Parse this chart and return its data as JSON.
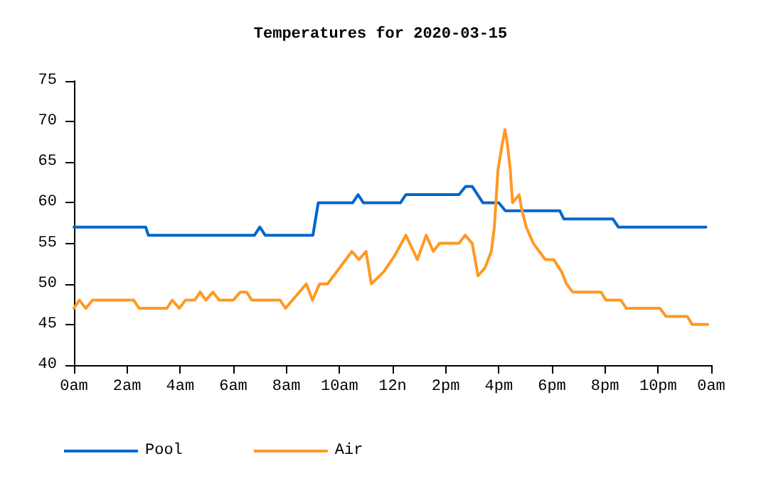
{
  "chart_data": {
    "type": "line",
    "title": "Temperatures for 2020-03-15",
    "xlim": [
      "2020-03-15T00:00",
      "2020-03-16T00:00"
    ],
    "xticks": [
      {
        "value": "2020-03-15T00:00",
        "label": "0am"
      },
      {
        "value": "2020-03-15T02:00",
        "label": "2am"
      },
      {
        "value": "2020-03-15T04:00",
        "label": "4am"
      },
      {
        "value": "2020-03-15T06:00",
        "label": "6am"
      },
      {
        "value": "2020-03-15T08:00",
        "label": "8am"
      },
      {
        "value": "2020-03-15T10:00",
        "label": "10am"
      },
      {
        "value": "2020-03-15T12:00",
        "label": "12n"
      },
      {
        "value": "2020-03-15T14:00",
        "label": "2pm"
      },
      {
        "value": "2020-03-15T16:00",
        "label": "4pm"
      },
      {
        "value": "2020-03-15T18:00",
        "label": "6pm"
      },
      {
        "value": "2020-03-15T20:00",
        "label": "8pm"
      },
      {
        "value": "2020-03-15T22:00",
        "label": "10pm"
      },
      {
        "value": "2020-03-16T00:00",
        "label": "0am"
      }
    ],
    "ylim": [
      40,
      75
    ],
    "yticks": [
      40,
      45,
      50,
      55,
      60,
      65,
      70,
      75
    ],
    "grid": false,
    "legend": "bottom left",
    "marker": "none",
    "line_style": "solid",
    "series": [
      {
        "name": "Pool",
        "color": "#0066cc",
        "x": [
          "2020-03-15T00:00",
          "2020-03-15T02:42",
          "2020-03-15T02:48",
          "2020-03-15T06:48",
          "2020-03-15T07:00",
          "2020-03-15T07:12",
          "2020-03-15T09:00",
          "2020-03-15T09:12",
          "2020-03-15T10:30",
          "2020-03-15T10:42",
          "2020-03-15T10:54",
          "2020-03-15T12:18",
          "2020-03-15T12:30",
          "2020-03-15T14:30",
          "2020-03-15T14:45",
          "2020-03-15T15:00",
          "2020-03-15T15:24",
          "2020-03-15T16:00",
          "2020-03-15T16:15",
          "2020-03-15T18:18",
          "2020-03-15T18:27",
          "2020-03-15T20:18",
          "2020-03-15T20:30",
          "2020-03-15T23:48"
        ],
        "values": [
          57,
          57,
          56,
          56,
          57,
          56,
          56,
          60,
          60,
          61,
          60,
          60,
          61,
          61,
          62,
          62,
          60,
          60,
          59,
          59,
          58,
          58,
          57,
          57
        ]
      },
      {
        "name": "Air",
        "color": "#ff9922",
        "x": [
          "2020-03-15T00:00",
          "2020-03-15T00:12",
          "2020-03-15T00:27",
          "2020-03-15T00:42",
          "2020-03-15T02:15",
          "2020-03-15T02:27",
          "2020-03-15T03:30",
          "2020-03-15T03:42",
          "2020-03-15T03:58",
          "2020-03-15T04:12",
          "2020-03-15T04:33",
          "2020-03-15T04:45",
          "2020-03-15T04:58",
          "2020-03-15T05:14",
          "2020-03-15T05:28",
          "2020-03-15T06:00",
          "2020-03-15T06:16",
          "2020-03-15T06:30",
          "2020-03-15T06:42",
          "2020-03-15T07:46",
          "2020-03-15T07:58",
          "2020-03-15T08:45",
          "2020-03-15T08:59",
          "2020-03-15T09:15",
          "2020-03-15T09:33",
          "2020-03-15T10:28",
          "2020-03-15T10:44",
          "2020-03-15T11:00",
          "2020-03-15T11:12",
          "2020-03-15T11:40",
          "2020-03-15T12:06",
          "2020-03-15T12:30",
          "2020-03-15T12:56",
          "2020-03-15T13:16",
          "2020-03-15T13:32",
          "2020-03-15T13:46",
          "2020-03-15T14:30",
          "2020-03-15T14:44",
          "2020-03-15T15:00",
          "2020-03-15T15:13",
          "2020-03-15T15:29",
          "2020-03-15T15:43",
          "2020-03-15T15:50",
          "2020-03-15T15:58",
          "2020-03-15T16:07",
          "2020-03-15T16:14",
          "2020-03-15T16:20",
          "2020-03-15T16:26",
          "2020-03-15T16:31",
          "2020-03-15T16:46",
          "2020-03-15T16:51",
          "2020-03-15T17:02",
          "2020-03-15T17:18",
          "2020-03-15T17:45",
          "2020-03-15T18:04",
          "2020-03-15T18:22",
          "2020-03-15T18:33",
          "2020-03-15T18:47",
          "2020-03-15T19:51",
          "2020-03-15T20:02",
          "2020-03-15T20:36",
          "2020-03-15T20:48",
          "2020-03-15T22:04",
          "2020-03-15T22:18",
          "2020-03-15T23:06",
          "2020-03-15T23:17",
          "2020-03-15T23:52"
        ],
        "values": [
          47,
          48,
          47,
          48,
          48,
          47,
          47,
          48,
          47,
          48,
          48,
          49,
          48,
          49,
          48,
          48,
          49,
          49,
          48,
          48,
          47,
          50,
          48,
          50,
          50,
          54,
          53,
          54,
          50,
          51.5,
          53.6,
          56,
          53,
          56,
          54,
          55,
          55,
          56,
          55,
          51,
          52,
          54,
          57,
          64,
          67,
          69,
          67,
          64,
          60,
          61,
          59.4,
          57,
          55,
          53,
          53,
          51.5,
          50,
          49,
          49,
          48,
          48,
          47,
          47,
          46,
          46,
          45,
          45
        ]
      }
    ]
  }
}
